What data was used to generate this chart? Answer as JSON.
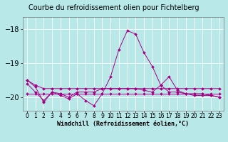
{
  "title": "Courbe du refroidissement olien pour Fichtelberg",
  "xlabel": "Windchill (Refroidissement éolien,°C)",
  "background_color": "#b8e8e8",
  "plot_bg_color": "#b8e8e8",
  "grid_color": "#ffffff",
  "line_color": "#aa0088",
  "marker": "D",
  "x_hours": [
    0,
    1,
    2,
    3,
    4,
    5,
    6,
    7,
    8,
    9,
    10,
    11,
    12,
    13,
    14,
    15,
    16,
    17,
    18,
    19,
    20,
    21,
    22,
    23
  ],
  "series": [
    [
      -19.5,
      -19.65,
      -19.75,
      -19.75,
      -19.75,
      -19.75,
      -19.75,
      -19.75,
      -19.75,
      -19.75,
      -19.75,
      -19.75,
      -19.75,
      -19.75,
      -19.75,
      -19.75,
      -19.75,
      -19.75,
      -19.75,
      -19.75,
      -19.75,
      -19.75,
      -19.75,
      -19.75
    ],
    [
      -19.9,
      -19.9,
      -19.9,
      -19.9,
      -19.9,
      -19.9,
      -19.9,
      -19.9,
      -19.9,
      -19.9,
      -19.9,
      -19.9,
      -19.9,
      -19.9,
      -19.9,
      -19.9,
      -19.9,
      -19.9,
      -19.9,
      -19.9,
      -19.9,
      -19.9,
      -19.9,
      -19.9
    ],
    [
      -19.6,
      -19.85,
      -20.1,
      -19.85,
      -19.9,
      -20.0,
      -19.85,
      -19.85,
      -19.85,
      -19.75,
      -19.75,
      -19.75,
      -19.75,
      -19.75,
      -19.8,
      -19.85,
      -19.65,
      -19.85,
      -19.85,
      -19.9,
      -19.9,
      -19.9,
      -19.95,
      -20.0
    ],
    [
      -19.5,
      -19.7,
      -20.15,
      -19.85,
      -19.95,
      -20.05,
      -19.9,
      -20.1,
      -20.25,
      -19.9,
      -19.4,
      -18.6,
      -18.05,
      -18.15,
      -18.7,
      -19.1,
      -19.65,
      -19.4,
      -19.8,
      -19.9,
      -19.95,
      -19.95,
      -19.95,
      -20.0
    ]
  ],
  "ylim": [
    -20.4,
    -17.65
  ],
  "yticks": [
    -20,
    -19,
    -18
  ],
  "xlim": [
    -0.5,
    23.5
  ],
  "figsize": [
    3.2,
    2.0
  ],
  "dpi": 100,
  "title_fontsize": 7,
  "xlabel_fontsize": 6,
  "ytick_fontsize": 7,
  "xtick_fontsize": 5.5
}
